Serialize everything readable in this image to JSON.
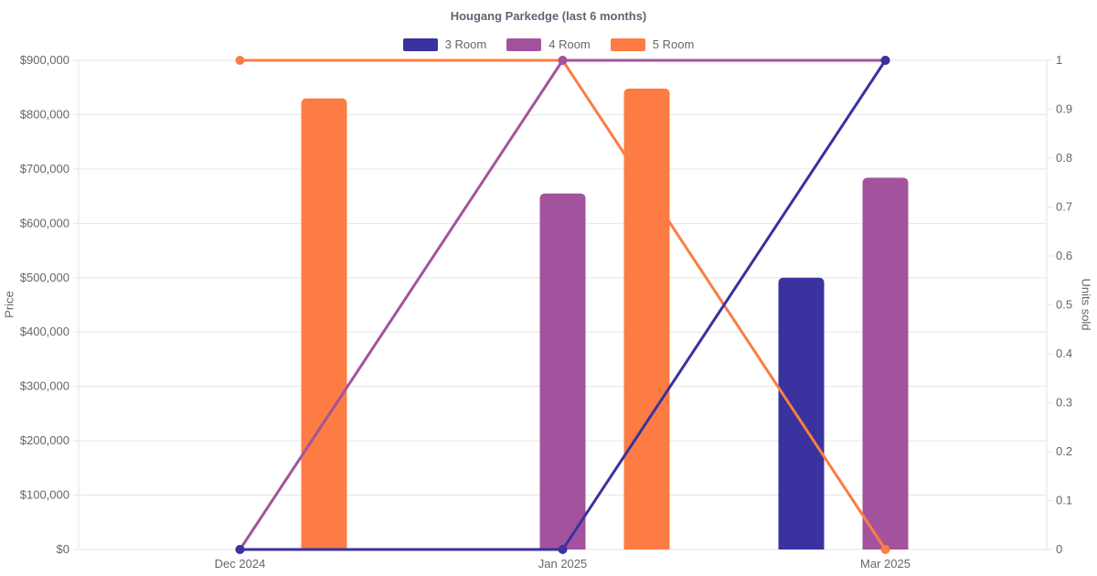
{
  "title": "Hougang Parkedge (last 6 months)",
  "background_color": "#ffffff",
  "legend": [
    {
      "label": "3 Room",
      "color": "#39329F"
    },
    {
      "label": "4 Room",
      "color": "#A3539D"
    },
    {
      "label": "5 Room",
      "color": "#FC7C44"
    }
  ],
  "chart_data": {
    "type": "bar+line combo",
    "title": "Hougang Parkedge (last 6 months)",
    "categories": [
      "Dec 2024",
      "Jan 2025",
      "Mar 2025"
    ],
    "grid": "horizontal gridlines from left axis only",
    "legend_position": "top center",
    "left_axis": {
      "label": "Price",
      "min": 0,
      "max": 900000,
      "tick_step": 100000,
      "tick_labels": [
        "$0",
        "$100,000",
        "$200,000",
        "$300,000",
        "$400,000",
        "$500,000",
        "$600,000",
        "$700,000",
        "$800,000",
        "$900,000"
      ]
    },
    "right_axis": {
      "label": "Units sold",
      "min": 0,
      "max": 1,
      "tick_step": 0.1,
      "tick_labels": [
        "0",
        "0.1",
        "0.2",
        "0.3",
        "0.4",
        "0.5",
        "0.6",
        "0.7",
        "0.8",
        "0.9",
        "1"
      ]
    },
    "bar_series": [
      {
        "name": "3 Room",
        "axis": "left",
        "color": "#39329F",
        "values": [
          null,
          null,
          500000
        ]
      },
      {
        "name": "4 Room",
        "axis": "left",
        "color": "#A3539D",
        "values": [
          null,
          655000,
          684000
        ]
      },
      {
        "name": "5 Room",
        "axis": "left",
        "color": "#FC7C44",
        "values": [
          830000,
          848000,
          null
        ]
      }
    ],
    "line_series": [
      {
        "name": "3 Room",
        "axis": "right",
        "color": "#39329F",
        "values": [
          0,
          0,
          1
        ]
      },
      {
        "name": "4 Room",
        "axis": "right",
        "color": "#A3539D",
        "values": [
          0,
          1,
          1
        ]
      },
      {
        "name": "5 Room",
        "axis": "right",
        "color": "#FC7C44",
        "values": [
          1,
          1,
          0
        ]
      }
    ]
  }
}
